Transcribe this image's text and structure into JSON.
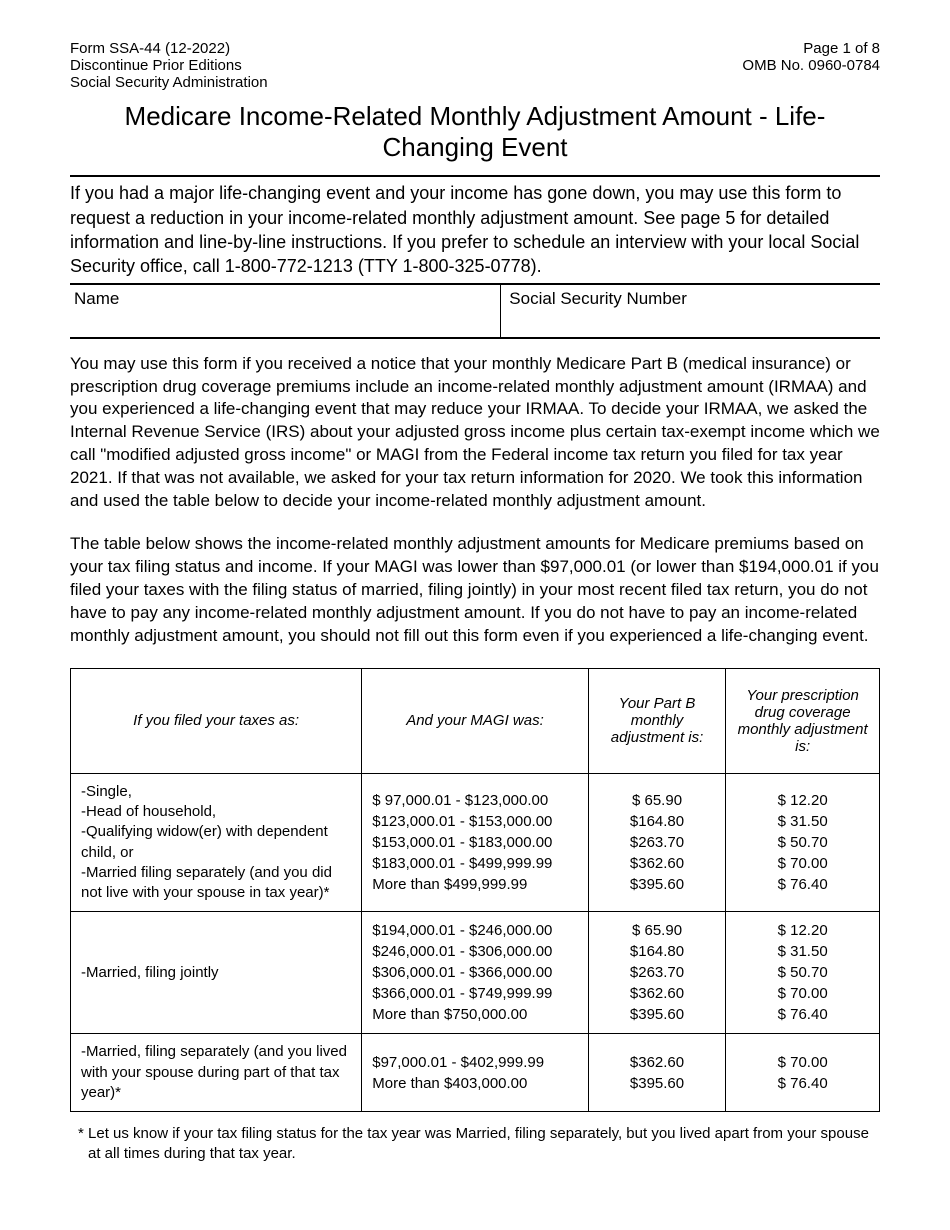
{
  "header": {
    "form_id": "Form SSA-44 (12-2022)",
    "discontinue": "Discontinue Prior Editions",
    "agency": "Social Security Administration",
    "page_info": "Page 1 of 8",
    "omb": "OMB No. 0960-0784"
  },
  "title": "Medicare Income-Related Monthly Adjustment Amount - Life-Changing Event",
  "intro": "If you had a major life-changing event and your income has gone down, you may use this form to request a reduction in your income-related monthly adjustment amount. See page 5 for detailed information and line-by-line instructions. If you prefer to schedule an interview with your local Social Security office, call 1-800-772-1213 (TTY 1-800-325-0778).",
  "fields": {
    "name_label": "Name",
    "ssn_label": "Social Security Number"
  },
  "para1": "You may use this form if you received a notice that your monthly Medicare Part B (medical insurance) or prescription drug coverage premiums include an income-related monthly adjustment amount (IRMAA) and you experienced a life-changing event that may reduce your IRMAA. To decide your IRMAA, we asked the Internal Revenue Service (IRS) about your adjusted gross income plus certain tax-exempt income which we call \"modified adjusted gross income\" or MAGI from the Federal income tax return you filed for tax year 2021. If that was not available, we asked for your tax return information for 2020. We took this information and used the table below to decide your income-related monthly adjustment amount.",
  "para2": "The table below shows the income-related monthly adjustment amounts for Medicare premiums based on your tax filing status and income. If your MAGI was lower than $97,000.01 (or lower than $194,000.01 if you filed your taxes with the filing status of married, filing jointly) in your most recent filed tax return, you do not have to pay any income-related monthly adjustment amount.  If you do not have to pay an income-related monthly adjustment amount, you should not fill out this form even if you experienced a life-changing event.",
  "table": {
    "headers": {
      "col1": "If you filed your taxes as:",
      "col2": "And your MAGI was:",
      "col3": "Your Part B monthly adjustment is:",
      "col4": "Your prescription drug coverage monthly adjustment is:"
    },
    "rows": [
      {
        "filing": "-Single,\n-Head of household,\n-Qualifying widow(er) with dependent child, or\n-Married filing separately (and you did not live with your spouse in tax year)*",
        "magi": "$  97,000.01 - $123,000.00\n$123,000.01 - $153,000.00\n$153,000.01 - $183,000.00\n$183,000.01 - $499,999.99\nMore than $499,999.99",
        "partb": "$ 65.90\n$164.80\n$263.70\n$362.60\n$395.60",
        "drug": "$ 12.20\n$ 31.50\n$ 50.70\n$ 70.00\n$ 76.40"
      },
      {
        "filing": "-Married, filing jointly",
        "magi": "$194,000.01 - $246,000.00\n$246,000.01 - $306,000.00\n$306,000.01 - $366,000.00\n$366,000.01 - $749,999.99\nMore than $750,000.00",
        "partb": "$ 65.90\n$164.80\n$263.70\n$362.60\n$395.60",
        "drug": "$ 12.20\n$ 31.50\n$ 50.70\n$ 70.00\n$ 76.40"
      },
      {
        "filing": "-Married, filing separately (and you lived with your spouse during part of that tax  year)*",
        "magi": "$97,000.01 - $402,999.99\nMore than $403,000.00",
        "partb": "$362.60\n$395.60",
        "drug": "$ 70.00\n$ 76.40"
      }
    ]
  },
  "footnote": "* Let us know if your tax filing status for the tax year was Married, filing separately, but you lived apart from your spouse at all times during that tax year."
}
